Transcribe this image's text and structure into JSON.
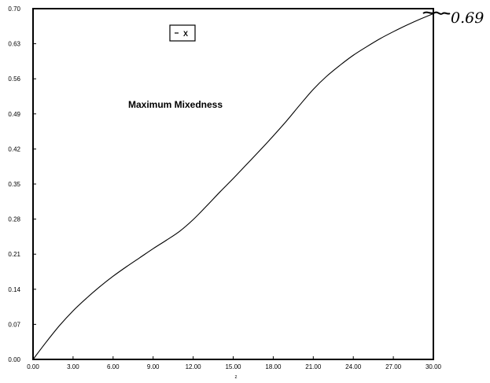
{
  "chart_data": {
    "type": "line",
    "title": "Maximum Mixedness",
    "xlabel": "z",
    "ylabel": "",
    "xlim": [
      0,
      30
    ],
    "ylim": [
      0,
      0.7
    ],
    "x_ticks": [
      "0.00",
      "3.00",
      "6.00",
      "9.00",
      "12.00",
      "15.00",
      "18.00",
      "21.00",
      "24.00",
      "27.00",
      "30.00"
    ],
    "y_ticks": [
      "0.00",
      "0.07",
      "0.14",
      "0.21",
      "0.28",
      "0.35",
      "0.42",
      "0.49",
      "0.56",
      "0.63",
      "0.70"
    ],
    "grid": false,
    "legend": {
      "position": "top-center",
      "entries": [
        "X"
      ]
    },
    "series": [
      {
        "name": "X",
        "color": "#000000",
        "x": [
          0,
          1,
          2,
          3,
          4,
          5,
          6,
          7,
          8,
          9,
          10,
          11,
          12,
          13,
          14,
          15,
          16,
          17,
          18,
          19,
          20,
          21,
          22,
          23,
          24,
          25,
          26,
          27,
          28,
          29,
          30
        ],
        "y": [
          0,
          0.035,
          0.068,
          0.097,
          0.122,
          0.145,
          0.166,
          0.185,
          0.203,
          0.221,
          0.238,
          0.256,
          0.279,
          0.306,
          0.334,
          0.361,
          0.389,
          0.417,
          0.446,
          0.476,
          0.508,
          0.539,
          0.565,
          0.587,
          0.607,
          0.624,
          0.64,
          0.654,
          0.667,
          0.679,
          0.69
        ]
      }
    ],
    "annotations": [
      {
        "text": "0.69",
        "x": 30,
        "y": 0.69
      }
    ]
  }
}
